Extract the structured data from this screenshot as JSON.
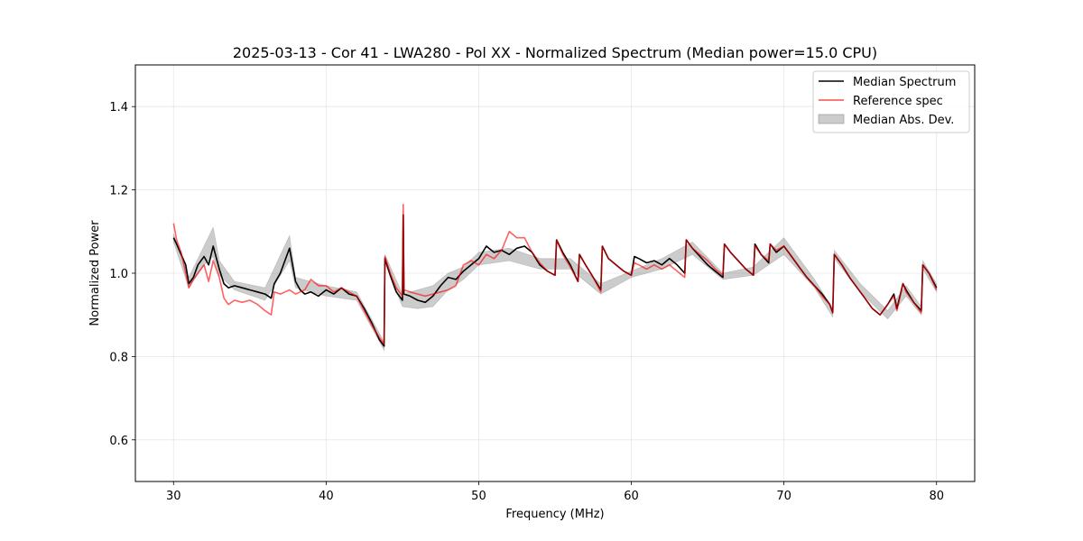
{
  "chart_data": {
    "type": "line",
    "title": "2025-03-13 - Cor 41 - LWA280 - Pol XX - Normalized Spectrum (Median power=15.0 CPU)",
    "xlabel": "Frequency (MHz)",
    "ylabel": "Normalized Power",
    "xlim": [
      27.5,
      82.5
    ],
    "ylim": [
      0.5,
      1.5
    ],
    "xticks": [
      30,
      40,
      50,
      60,
      70,
      80
    ],
    "yticks": [
      0.6,
      0.8,
      1.0,
      1.2,
      1.4
    ],
    "xtick_labels": [
      "30",
      "40",
      "50",
      "60",
      "70",
      "80"
    ],
    "ytick_labels": [
      "0.6",
      "0.8",
      "1.0",
      "1.2",
      "1.4"
    ],
    "grid": true,
    "legend_position": "top-right",
    "legend": [
      "Median Spectrum",
      "Reference spec",
      "Median Abs. Dev."
    ],
    "series": [
      {
        "name": "Median Spectrum",
        "color": "#000000",
        "x": [
          30.0,
          30.2,
          30.5,
          30.8,
          31.0,
          31.3,
          31.6,
          32.0,
          32.3,
          32.6,
          33.0,
          33.3,
          33.6,
          34.0,
          34.5,
          35.0,
          35.5,
          36.0,
          36.4,
          36.6,
          37.0,
          37.3,
          37.6,
          38.0,
          38.3,
          38.6,
          39.0,
          39.5,
          40.0,
          40.5,
          41.0,
          41.5,
          42.0,
          42.5,
          43.0,
          43.5,
          43.8,
          43.85,
          44.2,
          44.6,
          45.0,
          45.05,
          45.1,
          45.5,
          46.0,
          46.5,
          47.0,
          47.5,
          48.0,
          48.5,
          49.0,
          49.5,
          50.0,
          50.5,
          51.0,
          51.5,
          52.0,
          52.5,
          53.0,
          53.5,
          54.0,
          54.5,
          55.0,
          55.1,
          55.5,
          56.0,
          56.5,
          56.6,
          57.0,
          57.5,
          58.0,
          58.1,
          58.5,
          59.0,
          59.5,
          60.0,
          60.2,
          60.5,
          61.0,
          61.5,
          62.0,
          62.5,
          63.0,
          63.5,
          63.6,
          64.0,
          64.5,
          65.0,
          65.5,
          66.0,
          66.1,
          66.5,
          67.0,
          67.5,
          68.0,
          68.1,
          68.5,
          69.0,
          69.1,
          69.5,
          70.0,
          70.5,
          71.0,
          71.5,
          72.0,
          72.5,
          73.0,
          73.2,
          73.3,
          73.8,
          74.3,
          74.8,
          75.3,
          75.8,
          76.3,
          76.8,
          77.2,
          77.4,
          77.8,
          78.0,
          78.5,
          79.0,
          79.1,
          79.5,
          80.0
        ],
        "values": [
          1.085,
          1.07,
          1.045,
          1.02,
          0.975,
          0.99,
          1.02,
          1.04,
          1.02,
          1.065,
          1.01,
          0.975,
          0.965,
          0.97,
          0.965,
          0.96,
          0.955,
          0.95,
          0.94,
          0.975,
          1.0,
          1.03,
          1.06,
          0.98,
          0.96,
          0.95,
          0.955,
          0.945,
          0.96,
          0.95,
          0.965,
          0.95,
          0.945,
          0.915,
          0.88,
          0.84,
          0.825,
          1.035,
          0.995,
          0.955,
          0.935,
          1.14,
          0.95,
          0.945,
          0.935,
          0.93,
          0.945,
          0.97,
          0.99,
          0.985,
          1.005,
          1.02,
          1.035,
          1.065,
          1.05,
          1.055,
          1.045,
          1.06,
          1.065,
          1.05,
          1.02,
          1.005,
          0.995,
          1.08,
          1.05,
          1.02,
          0.98,
          1.045,
          1.02,
          0.99,
          0.96,
          1.065,
          1.035,
          1.02,
          1.005,
          0.995,
          1.04,
          1.035,
          1.025,
          1.03,
          1.02,
          1.035,
          1.02,
          1.0,
          1.08,
          1.06,
          1.04,
          1.02,
          1.005,
          0.99,
          1.07,
          1.05,
          1.03,
          1.01,
          0.995,
          1.07,
          1.045,
          1.025,
          1.07,
          1.05,
          1.065,
          1.04,
          1.015,
          0.99,
          0.97,
          0.95,
          0.925,
          0.905,
          1.045,
          1.02,
          0.99,
          0.965,
          0.94,
          0.915,
          0.9,
          0.925,
          0.95,
          0.915,
          0.975,
          0.96,
          0.93,
          0.91,
          1.02,
          1.0,
          0.965
        ]
      },
      {
        "name": "Reference spec",
        "color": "#ff0000",
        "x": [
          30.0,
          30.2,
          30.5,
          30.8,
          31.0,
          31.3,
          31.6,
          32.0,
          32.3,
          32.6,
          33.0,
          33.3,
          33.6,
          34.0,
          34.5,
          35.0,
          35.5,
          36.0,
          36.4,
          36.6,
          37.0,
          37.3,
          37.6,
          38.0,
          38.3,
          38.6,
          39.0,
          39.5,
          40.0,
          40.5,
          41.0,
          41.5,
          42.0,
          42.5,
          43.0,
          43.5,
          43.8,
          43.85,
          44.2,
          44.6,
          45.0,
          45.05,
          45.1,
          45.5,
          46.0,
          46.5,
          47.0,
          47.5,
          48.0,
          48.5,
          49.0,
          49.5,
          50.0,
          50.5,
          51.0,
          51.5,
          52.0,
          52.5,
          53.0,
          53.5,
          54.0,
          54.5,
          55.0,
          55.1,
          55.5,
          56.0,
          56.5,
          56.6,
          57.0,
          57.5,
          58.0,
          58.1,
          58.5,
          59.0,
          59.5,
          60.0,
          60.2,
          60.5,
          61.0,
          61.5,
          62.0,
          62.5,
          63.0,
          63.5,
          63.6,
          64.0,
          64.5,
          65.0,
          65.5,
          66.0,
          66.1,
          66.5,
          67.0,
          67.5,
          68.0,
          68.1,
          68.5,
          69.0,
          69.1,
          69.5,
          70.0,
          70.5,
          71.0,
          71.5,
          72.0,
          72.5,
          73.0,
          73.2,
          73.3,
          73.8,
          74.3,
          74.8,
          75.3,
          75.8,
          76.3,
          76.8,
          77.2,
          77.4,
          77.8,
          78.0,
          78.5,
          79.0,
          79.1,
          79.5,
          80.0
        ],
        "values": [
          1.12,
          1.08,
          1.05,
          1.0,
          0.965,
          0.985,
          1.0,
          1.02,
          0.98,
          1.03,
          0.99,
          0.94,
          0.925,
          0.935,
          0.93,
          0.935,
          0.925,
          0.91,
          0.9,
          0.955,
          0.95,
          0.955,
          0.96,
          0.95,
          0.955,
          0.96,
          0.985,
          0.97,
          0.97,
          0.955,
          0.965,
          0.955,
          0.945,
          0.91,
          0.875,
          0.845,
          0.83,
          1.04,
          1.0,
          0.965,
          0.945,
          1.165,
          0.96,
          0.955,
          0.95,
          0.945,
          0.95,
          0.955,
          0.96,
          0.97,
          1.02,
          1.03,
          1.02,
          1.045,
          1.035,
          1.055,
          1.1,
          1.085,
          1.085,
          1.05,
          1.025,
          1.005,
          0.995,
          1.08,
          1.045,
          1.015,
          0.98,
          1.045,
          1.02,
          0.99,
          0.955,
          1.065,
          1.035,
          1.02,
          1.005,
          0.995,
          1.025,
          1.02,
          1.01,
          1.02,
          1.01,
          1.02,
          1.005,
          0.99,
          1.08,
          1.06,
          1.045,
          1.03,
          1.01,
          0.995,
          1.07,
          1.05,
          1.03,
          1.01,
          0.995,
          1.065,
          1.045,
          1.03,
          1.07,
          1.055,
          1.065,
          1.04,
          1.015,
          0.99,
          0.97,
          0.945,
          0.925,
          0.905,
          1.045,
          1.02,
          0.99,
          0.965,
          0.94,
          0.915,
          0.9,
          0.925,
          0.945,
          0.91,
          0.975,
          0.955,
          0.93,
          0.905,
          1.02,
          1.0,
          0.96
        ]
      }
    ],
    "band": {
      "name": "Median Abs. Dev.",
      "color": "#808080",
      "x": [
        30.0,
        31.0,
        32.0,
        32.6,
        33.0,
        34.0,
        36.0,
        37.6,
        38.0,
        40.0,
        42.0,
        43.8,
        43.85,
        45.0,
        46.0,
        47.0,
        48.0,
        49.0,
        50.0,
        52.0,
        54.0,
        56.0,
        58.0,
        60.0,
        62.0,
        64.0,
        66.0,
        68.0,
        70.0,
        72.0,
        73.2,
        73.3,
        75.0,
        76.8,
        78.0,
        79.0,
        79.1,
        80.0
      ],
      "lower": [
        1.075,
        0.965,
        1.02,
        1.04,
        0.995,
        0.96,
        0.935,
        1.03,
        0.965,
        0.945,
        0.935,
        0.815,
        1.025,
        0.92,
        0.915,
        0.92,
        0.96,
        0.985,
        1.02,
        1.03,
        1.01,
        1.01,
        0.95,
        0.99,
        1.01,
        1.045,
        0.985,
        0.995,
        1.045,
        0.965,
        0.895,
        1.035,
        0.955,
        0.89,
        0.945,
        0.9,
        1.01,
        0.955
      ],
      "upper": [
        1.095,
        0.99,
        1.065,
        1.11,
        1.03,
        0.98,
        0.965,
        1.09,
        0.99,
        0.97,
        0.955,
        0.835,
        1.045,
        0.95,
        0.96,
        0.97,
        1.0,
        1.015,
        1.05,
        1.06,
        1.035,
        1.035,
        0.975,
        1.005,
        1.035,
        1.075,
        1.0,
        1.015,
        1.085,
        0.985,
        0.915,
        1.055,
        0.975,
        0.91,
        0.97,
        0.92,
        1.03,
        0.975
      ]
    }
  }
}
